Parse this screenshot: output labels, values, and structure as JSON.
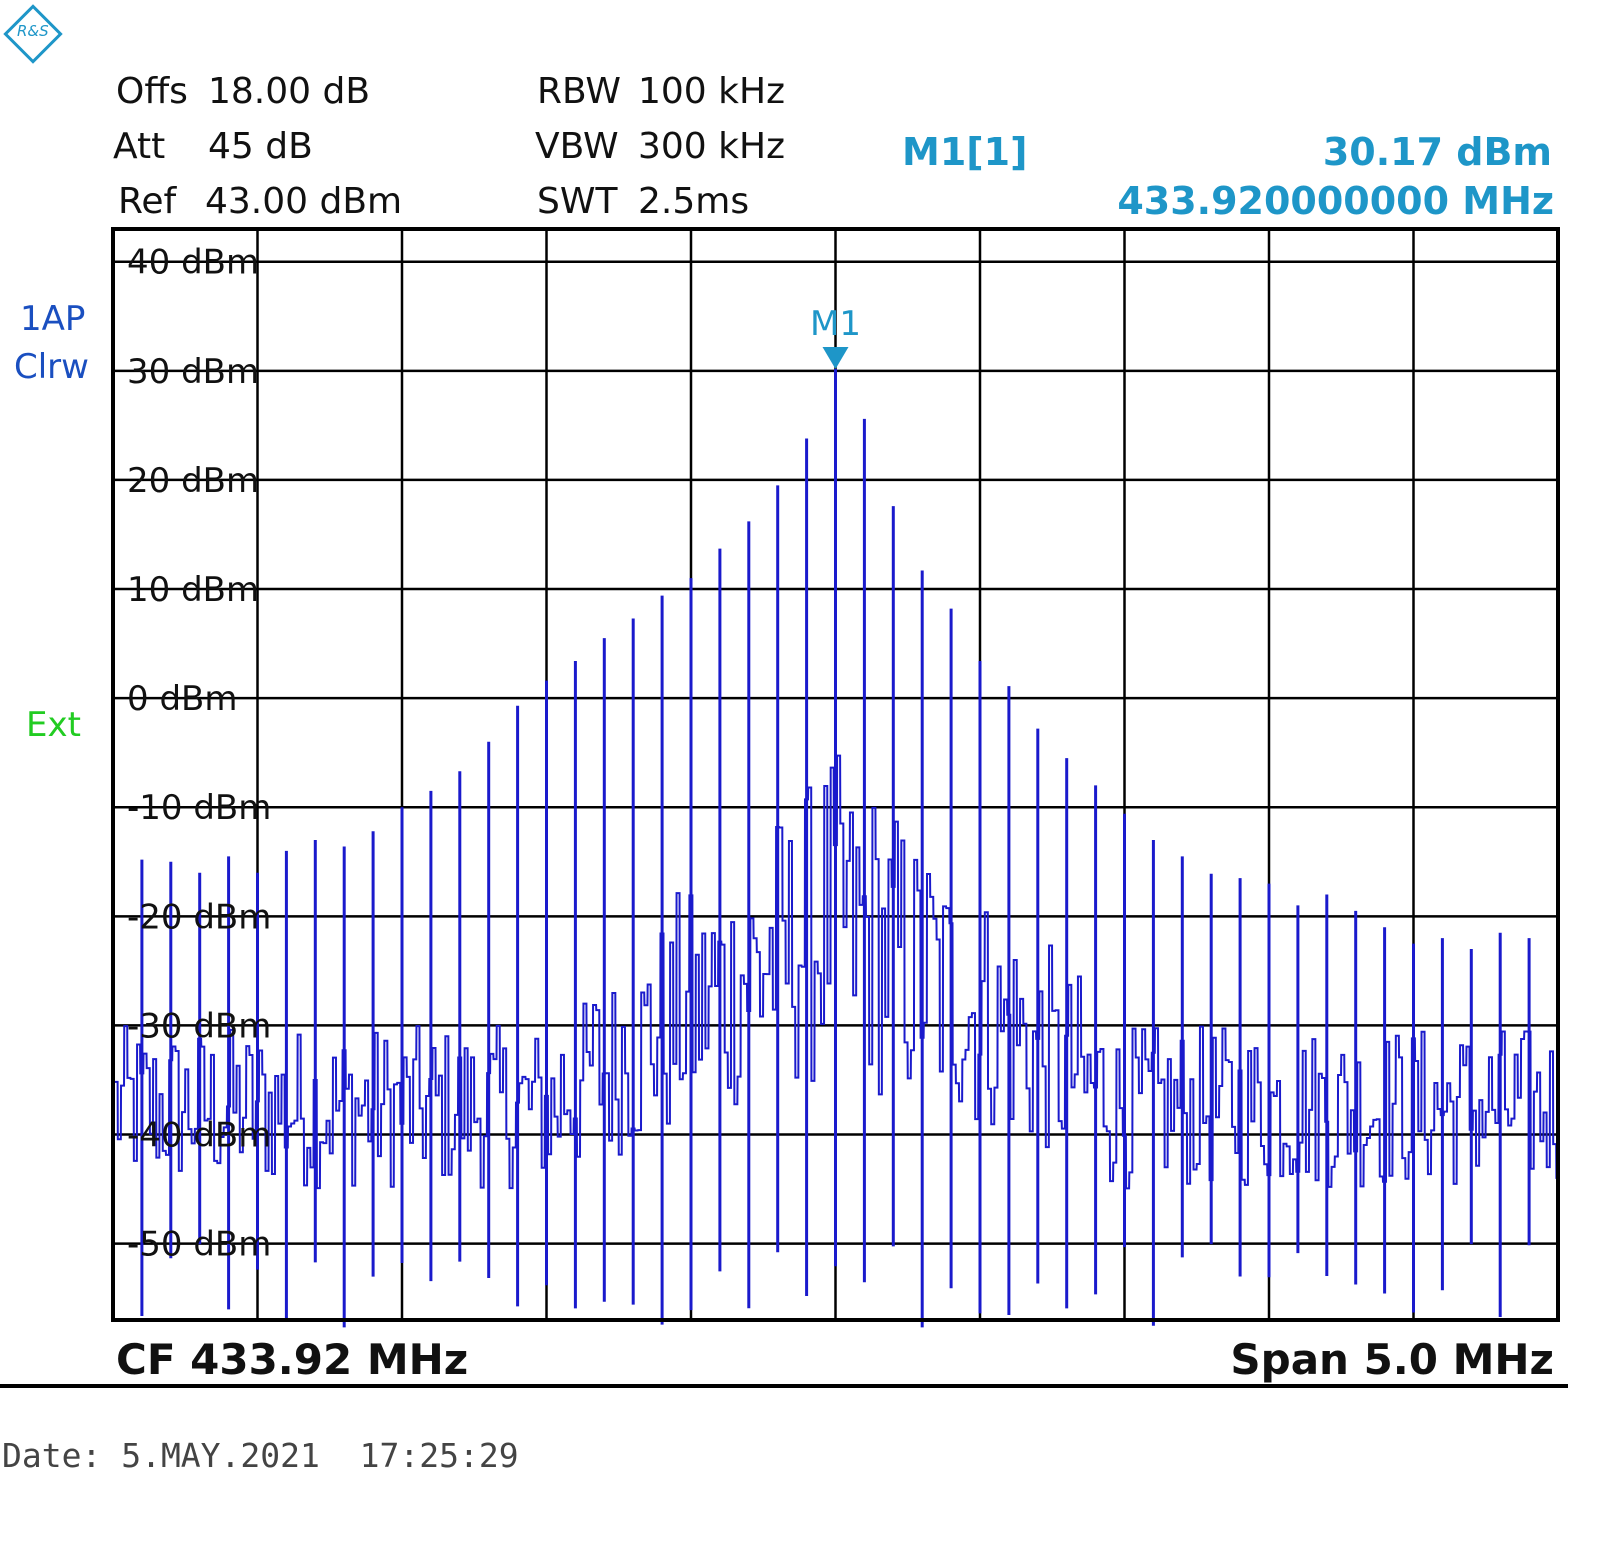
{
  "logo_text": "R&S",
  "settings": {
    "offs_label": "Offs",
    "offs_value": "18.00 dB",
    "att_label": "Att",
    "att_value": "45 dB",
    "ref_label": "Ref",
    "ref_value": "43.00 dBm",
    "rbw_label": "RBW",
    "rbw_value": "100 kHz",
    "vbw_label": "VBW",
    "vbw_value": "300 kHz",
    "swt_label": "SWT",
    "swt_value": "2.5ms"
  },
  "marker": {
    "name": "M1[1]",
    "level": "30.17 dBm",
    "frequency": "433.920000000 MHz",
    "label": "M1"
  },
  "trace_info": {
    "detector": "1AP",
    "mode": "Clrw",
    "trigger": "Ext"
  },
  "footer": {
    "cf": "CF 433.92 MHz",
    "span": "Span 5.0 MHz"
  },
  "date": "Date: 5.MAY.2021  17:25:29",
  "colors": {
    "trace": "#1a1acc",
    "marker": "#1e96c8",
    "side_label": "#1a4fc0",
    "ext": "#22cc22",
    "grid": "#000000"
  },
  "chart_data": {
    "type": "line",
    "title": "",
    "xlabel": "",
    "ylabel": "",
    "center_frequency_mhz": 433.92,
    "span_mhz": 5.0,
    "xlim": [
      431.42,
      436.42
    ],
    "ylim": [
      -57,
      43
    ],
    "y_ticks": [
      "40 dBm",
      "30 dBm",
      "20 dBm",
      "10 dBm",
      "0 dBm",
      "-10 dBm",
      "-20 dBm",
      "-30 dBm",
      "-40 dBm",
      "-50 dBm"
    ],
    "y_tick_values": [
      40,
      30,
      20,
      10,
      0,
      -10,
      -20,
      -30,
      -40,
      -50
    ],
    "grid": true,
    "x_divisions": 10,
    "series": [
      {
        "freq_mhz": [
          431.42,
          431.52,
          431.62,
          431.72,
          431.82,
          431.92,
          432.02,
          432.12,
          432.22,
          432.32,
          432.42,
          432.52,
          432.62,
          432.72,
          432.82,
          432.92,
          433.02,
          433.12,
          433.22,
          433.32,
          433.42,
          433.52,
          433.62,
          433.72,
          433.82,
          433.92,
          434.02,
          434.12,
          434.22,
          434.32,
          434.42,
          434.52,
          434.62,
          434.72,
          434.82,
          434.92,
          435.02,
          435.12,
          435.22,
          435.32,
          435.42,
          435.52,
          435.62,
          435.72,
          435.82,
          435.92,
          436.02,
          436.12,
          436.22,
          436.32,
          436.42
        ],
        "peak_dbm": [
          -16.6,
          -14.8,
          -15.0,
          -16.0,
          -14.5,
          -16.0,
          -14.0,
          -13.0,
          -13.6,
          -12.2,
          -10.0,
          -8.5,
          -6.7,
          -4.0,
          -0.7,
          1.6,
          3.4,
          5.5,
          7.3,
          9.4,
          11.0,
          13.7,
          16.2,
          19.5,
          23.8,
          30.17,
          25.6,
          17.6,
          11.7,
          8.2,
          3.4,
          1.1,
          -2.8,
          -5.5,
          -8.0,
          -10.6,
          -13.0,
          -14.5,
          -16.1,
          -16.5,
          -17.0,
          -19.0,
          -18.0,
          -19.5,
          -21.0,
          -22.5,
          -22.0,
          -23.0,
          -21.5,
          -22.0,
          -23.0
        ]
      }
    ],
    "noise_floor_dbm": [
      -45,
      -30
    ],
    "markers": [
      {
        "name": "M1",
        "freq_mhz": 433.92,
        "level_dbm": 30.17
      }
    ]
  }
}
